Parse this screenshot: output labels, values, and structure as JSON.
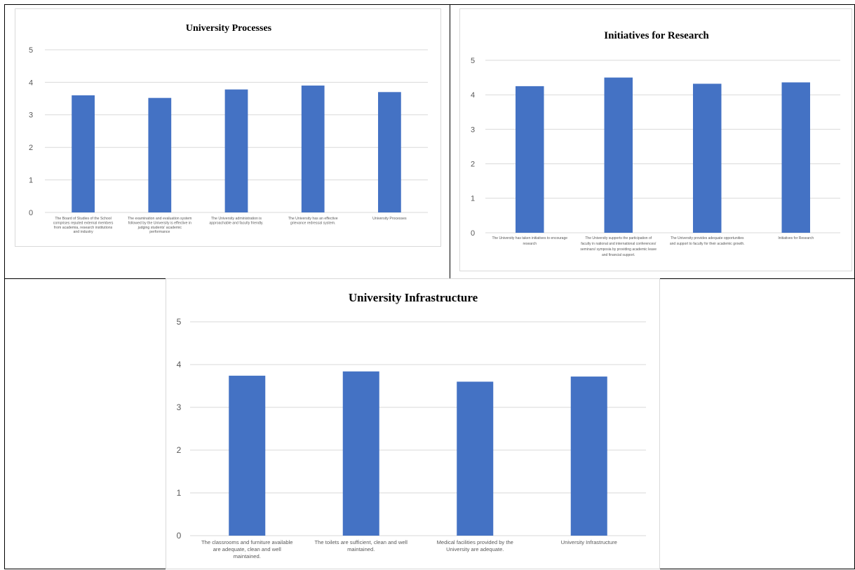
{
  "chart_data": [
    {
      "type": "bar",
      "title": "University Processes",
      "xlabel": "",
      "ylabel": "",
      "ylim": [
        0,
        5
      ],
      "yticks": [
        0,
        1,
        2,
        3,
        4,
        5
      ],
      "grid": true,
      "bar_color": "#4472c4",
      "categories": [
        [
          "The Board of Studies of the School",
          "comprises reputed external members",
          "from academia, research institutions",
          "and industry"
        ],
        [
          "The examination  and evaluation system",
          "followed  by the University is effective  in",
          "judging  students' academic",
          "performance"
        ],
        [
          "The University administration is",
          "approachable and faculty friendly."
        ],
        [
          "The University has an effective",
          "grievance redressal system."
        ],
        [
          "University Processes"
        ]
      ],
      "values": [
        3.6,
        3.52,
        3.78,
        3.9,
        3.7
      ]
    },
    {
      "type": "bar",
      "title": "Initiatives for Research",
      "xlabel": "",
      "ylabel": "",
      "ylim": [
        0,
        5
      ],
      "yticks": [
        0,
        1,
        2,
        3,
        4,
        5
      ],
      "grid": true,
      "bar_color": "#4472c4",
      "categories": [
        [
          "The University has taken initiatives to encourage",
          "research"
        ],
        [
          "The University supports the participation of",
          "faculty in national and international conferences/",
          "seminars/ symposia by providing academic leave",
          "and financial support."
        ],
        [
          "The University provides adequate opportunities",
          "and support to faculty for their academic growth."
        ],
        [
          "Initiatives for Research"
        ]
      ],
      "values": [
        4.25,
        4.5,
        4.32,
        4.36
      ]
    },
    {
      "type": "bar",
      "title": "University Infrastructure",
      "xlabel": "",
      "ylabel": "",
      "ylim": [
        0,
        5
      ],
      "yticks": [
        0,
        1,
        2,
        3,
        4,
        5
      ],
      "grid": true,
      "bar_color": "#4472c4",
      "categories": [
        [
          "The classrooms and furniture available",
          "are adequate, clean and well",
          "maintained."
        ],
        [
          "The toilets are sufficient, clean and well",
          "maintained."
        ],
        [
          "Medical facilities provided by the",
          "University are adequate."
        ],
        [
          "University Infrastructure"
        ]
      ],
      "values": [
        3.74,
        3.84,
        3.6,
        3.72
      ]
    }
  ]
}
